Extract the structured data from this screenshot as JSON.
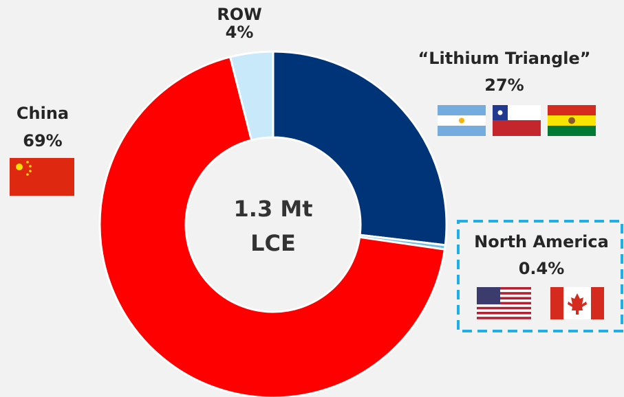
{
  "chart_data": {
    "type": "donut",
    "categories": [
      "“Lithium Triangle”",
      "North America",
      "China",
      "ROW"
    ],
    "values": [
      27,
      0.4,
      69,
      4
    ],
    "value_labels": [
      "27%",
      "0.4%",
      "69%",
      "4%"
    ],
    "colors": [
      "#003478",
      "#6fbde6",
      "#ff0000",
      "#c8e9fa"
    ],
    "center_label": [
      "1.3 Mt",
      "LCE"
    ]
  }
}
